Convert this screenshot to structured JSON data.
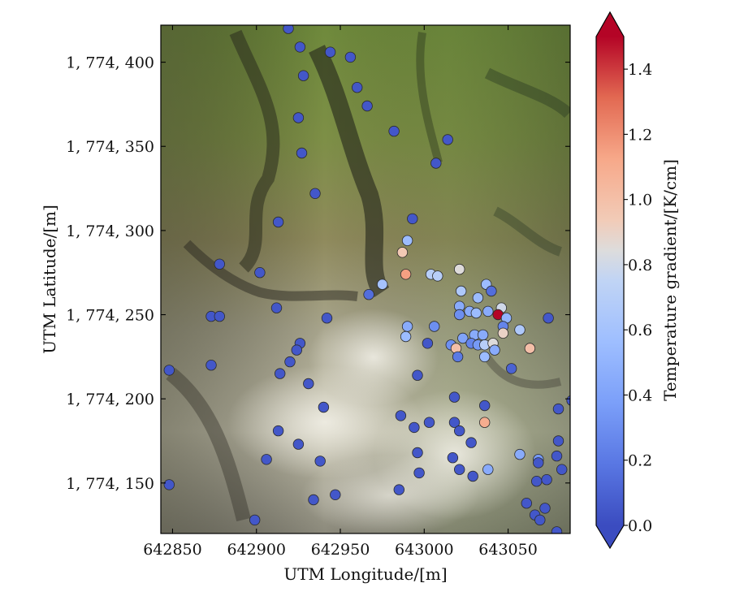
{
  "chart_data": {
    "type": "scatter",
    "background": "aerial orthophoto of volcanic terrain (vegetated slopes to the north, bare pale ground and fumarole steam to the south)",
    "xlabel": "UTM Longitude/[m]",
    "ylabel": "UTM Latitude/[m]",
    "xlim": [
      642843,
      643087
    ],
    "ylim": [
      1774120,
      1774422
    ],
    "xticks": [
      642850,
      642900,
      642950,
      643000,
      643050
    ],
    "xtick_labels": [
      "642850",
      "642900",
      "642950",
      "643000",
      "643050"
    ],
    "yticks": [
      1774150,
      1774200,
      1774250,
      1774300,
      1774350,
      1774400
    ],
    "ytick_labels": [
      "1, 774, 150",
      "1, 774, 200",
      "1, 774, 250",
      "1, 774, 300",
      "1, 774, 350",
      "1, 774, 400"
    ],
    "colorbar": {
      "label": "Temperature gradient/[K/cm]",
      "colormap": "coolwarm",
      "vmin": 0.0,
      "vmax": 1.5,
      "extend": "both",
      "ticks": [
        0.0,
        0.2,
        0.4,
        0.6,
        0.8,
        1.0,
        1.2,
        1.4
      ],
      "tick_labels": [
        "0.0",
        "0.2",
        "0.4",
        "0.6",
        "0.8",
        "1.0",
        "1.2",
        "1.4"
      ]
    },
    "points": [
      [
        642919,
        1774420,
        0.05
      ],
      [
        642926,
        1774409,
        0.05
      ],
      [
        642944,
        1774406,
        0.05
      ],
      [
        642956,
        1774403,
        0.05
      ],
      [
        642928,
        1774392,
        0.05
      ],
      [
        642960,
        1774385,
        0.05
      ],
      [
        642966,
        1774374,
        0.05
      ],
      [
        642925,
        1774367,
        0.05
      ],
      [
        642982,
        1774359,
        0.05
      ],
      [
        643014,
        1774354,
        0.05
      ],
      [
        642927,
        1774346,
        0.05
      ],
      [
        643007,
        1774340,
        0.05
      ],
      [
        642935,
        1774322,
        0.05
      ],
      [
        642913,
        1774305,
        0.05
      ],
      [
        642993,
        1774307,
        0.05
      ],
      [
        642990,
        1774294,
        0.55
      ],
      [
        642987,
        1774287,
        0.95
      ],
      [
        642878,
        1774280,
        0.05
      ],
      [
        642902,
        1774275,
        0.05
      ],
      [
        642989,
        1774274,
        1.15
      ],
      [
        643004,
        1774274,
        0.7
      ],
      [
        643008,
        1774273,
        0.7
      ],
      [
        643021,
        1774277,
        0.85
      ],
      [
        643037,
        1774268,
        0.55
      ],
      [
        642975,
        1774268,
        0.6
      ],
      [
        642967,
        1774262,
        0.15
      ],
      [
        643022,
        1774264,
        0.65
      ],
      [
        643040,
        1774264,
        0.15
      ],
      [
        643032,
        1774260,
        0.55
      ],
      [
        642912,
        1774254,
        0.05
      ],
      [
        643021,
        1774255,
        0.45
      ],
      [
        643027,
        1774252,
        0.45
      ],
      [
        643031,
        1774251,
        0.55
      ],
      [
        643038,
        1774252,
        0.45
      ],
      [
        643046,
        1774254,
        0.8
      ],
      [
        643044,
        1774250,
        1.5
      ],
      [
        643049,
        1774248,
        0.5
      ],
      [
        643074,
        1774248,
        0.05
      ],
      [
        642873,
        1774249,
        0.05
      ],
      [
        642878,
        1774249,
        0.05
      ],
      [
        642942,
        1774248,
        0.05
      ],
      [
        643021,
        1774250,
        0.3
      ],
      [
        643047,
        1774243,
        0.25
      ],
      [
        643057,
        1774241,
        0.65
      ],
      [
        642990,
        1774243,
        0.45
      ],
      [
        643006,
        1774243,
        0.3
      ],
      [
        642989,
        1774237,
        0.55
      ],
      [
        643030,
        1774238,
        0.45
      ],
      [
        643035,
        1774238,
        0.45
      ],
      [
        643047,
        1774239,
        0.9
      ],
      [
        643063,
        1774230,
        1.0
      ],
      [
        643016,
        1774232,
        0.3
      ],
      [
        643023,
        1774236,
        0.4
      ],
      [
        643028,
        1774233,
        0.25
      ],
      [
        643032,
        1774232,
        0.35
      ],
      [
        643036,
        1774232,
        0.7
      ],
      [
        643041,
        1774233,
        0.85
      ],
      [
        643019,
        1774230,
        1.0
      ],
      [
        643042,
        1774229,
        0.45
      ],
      [
        642926,
        1774233,
        0.05
      ],
      [
        643002,
        1774233,
        0.05
      ],
      [
        642924,
        1774229,
        0.05
      ],
      [
        643020,
        1774225,
        0.2
      ],
      [
        643036,
        1774225,
        0.55
      ],
      [
        642873,
        1774220,
        0.05
      ],
      [
        642920,
        1774222,
        0.05
      ],
      [
        642848,
        1774217,
        0.05
      ],
      [
        642914,
        1774215,
        0.05
      ],
      [
        643052,
        1774218,
        0.1
      ],
      [
        642996,
        1774214,
        0.05
      ],
      [
        642931,
        1774209,
        0.05
      ],
      [
        643018,
        1774201,
        0.05
      ],
      [
        643036,
        1774196,
        0.05
      ],
      [
        643080,
        1774194,
        0.05
      ],
      [
        643088,
        1774199,
        0.05
      ],
      [
        642940,
        1774195,
        0.05
      ],
      [
        642986,
        1774190,
        0.05
      ],
      [
        643003,
        1774186,
        0.05
      ],
      [
        643018,
        1774186,
        0.05
      ],
      [
        643036,
        1774186,
        1.1
      ],
      [
        642994,
        1774183,
        0.05
      ],
      [
        642913,
        1774181,
        0.05
      ],
      [
        643021,
        1774181,
        0.05
      ],
      [
        643028,
        1774174,
        0.05
      ],
      [
        643080,
        1774175,
        0.05
      ],
      [
        642925,
        1774173,
        0.05
      ],
      [
        642996,
        1774168,
        0.05
      ],
      [
        643057,
        1774167,
        0.45
      ],
      [
        643079,
        1774166,
        0.05
      ],
      [
        642906,
        1774164,
        0.05
      ],
      [
        643017,
        1774165,
        0.05
      ],
      [
        643068,
        1774164,
        0.35
      ],
      [
        643068,
        1774162,
        0.05
      ],
      [
        642938,
        1774163,
        0.05
      ],
      [
        643021,
        1774158,
        0.05
      ],
      [
        643038,
        1774158,
        0.45
      ],
      [
        643082,
        1774158,
        0.05
      ],
      [
        642997,
        1774156,
        0.05
      ],
      [
        643029,
        1774154,
        0.05
      ],
      [
        643067,
        1774151,
        0.05
      ],
      [
        643073,
        1774152,
        0.05
      ],
      [
        642848,
        1774149,
        0.05
      ],
      [
        642985,
        1774146,
        0.05
      ],
      [
        642947,
        1774143,
        0.05
      ],
      [
        642934,
        1774140,
        0.05
      ],
      [
        643061,
        1774138,
        0.05
      ],
      [
        643072,
        1774135,
        0.05
      ],
      [
        643066,
        1774131,
        0.05
      ],
      [
        642899,
        1774128,
        0.05
      ],
      [
        643069,
        1774128,
        0.05
      ],
      [
        643079,
        1774121,
        0.05
      ]
    ]
  }
}
